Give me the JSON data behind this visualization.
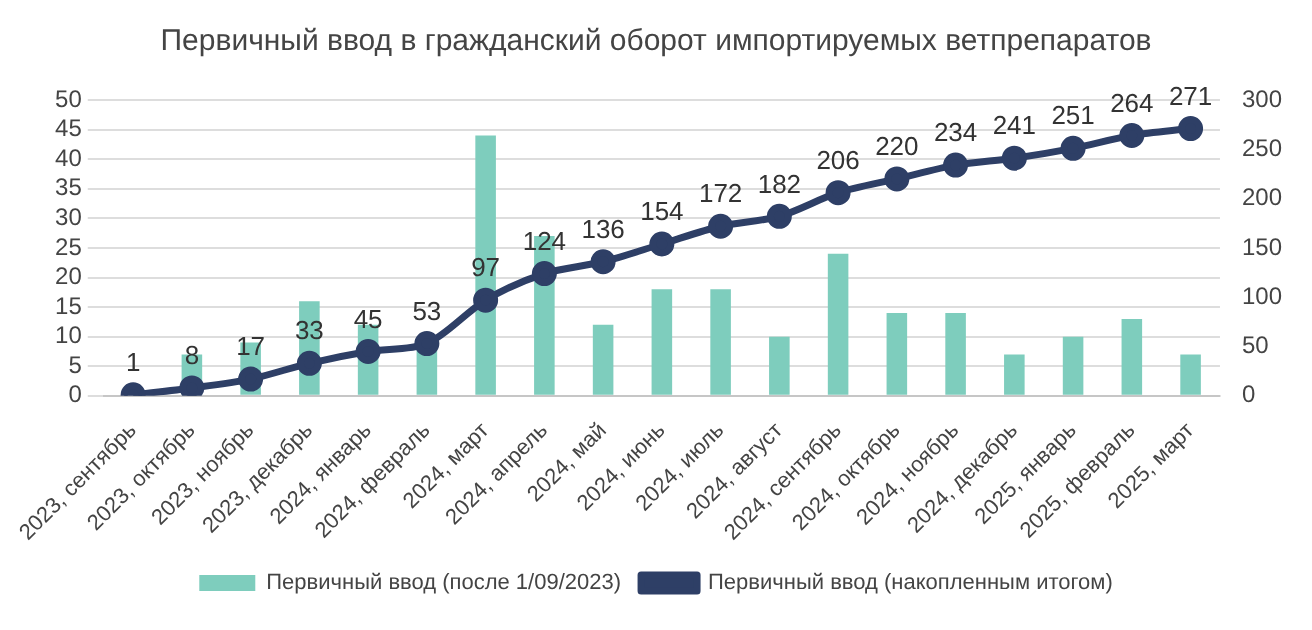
{
  "chart_data": {
    "type": "bar",
    "title": "Первичный ввод в гражданский оборот импортируемых ветпрепаратов",
    "categories": [
      "2023, сентябрь",
      "2023, октябрь",
      "2023, ноябрь",
      "2023, декабрь",
      "2024, январь",
      "2024, февраль",
      "2024, март",
      "2024, апрель",
      "2024, май",
      "2024, июнь",
      "2024, июль",
      "2024, август",
      "2024, сентябрь",
      "2024, октябрь",
      "2024, ноябрь",
      "2024, декабрь",
      "2025, январь",
      "2025, февраль",
      "2025, март"
    ],
    "series": [
      {
        "name": "Первичный ввод (после 1/09/2023)",
        "color": "#7ecdbd",
        "values": [
          null,
          7,
          9,
          16,
          12,
          8,
          44,
          27,
          12,
          18,
          18,
          10,
          24,
          14,
          14,
          7,
          10,
          13,
          7
        ]
      },
      {
        "name": "Первичный ввод (накопленным итогом)",
        "type": "line",
        "axis": "y2",
        "color": "#2e3f66",
        "marker": "circle",
        "values": [
          1,
          8,
          17,
          33,
          45,
          53,
          97,
          124,
          136,
          154,
          172,
          182,
          206,
          220,
          234,
          241,
          251,
          264,
          271
        ],
        "value_labels": [
          "1",
          "8",
          "17",
          "33",
          "45",
          "53",
          "97",
          "124",
          "136",
          "154",
          "172",
          "182",
          "206",
          "220",
          "234",
          "241",
          "251",
          "264",
          "271"
        ]
      }
    ],
    "ylim": [
      0,
      50
    ],
    "yticks": [
      0,
      5,
      10,
      15,
      20,
      25,
      30,
      35,
      40,
      45,
      50
    ],
    "y2lim": [
      0,
      300
    ],
    "y2ticks": [
      0,
      50,
      100,
      150,
      200,
      250,
      300
    ],
    "grid": "y",
    "legend": "bottom"
  }
}
